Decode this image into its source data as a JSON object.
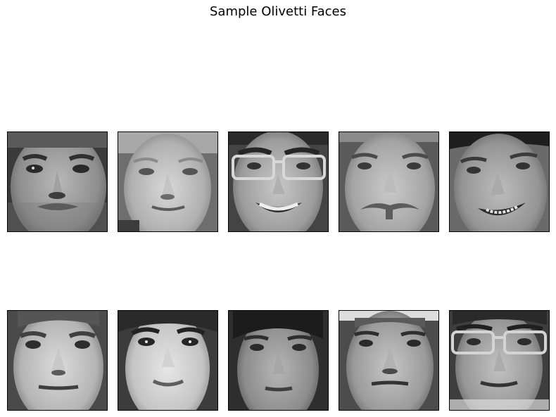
{
  "figure": {
    "title": "Sample Olivetti Faces"
  },
  "grid": {
    "rows": 2,
    "cols": 5
  },
  "faces": [
    {
      "index": 1,
      "description": "man, short dark hair, light stubble, neutral expression"
    },
    {
      "index": 2,
      "description": "man, short blond hair, slight smile"
    },
    {
      "index": 3,
      "description": "man wearing large glasses, broad smile showing teeth"
    },
    {
      "index": 4,
      "description": "man with moustache, neutral expression"
    },
    {
      "index": 5,
      "description": "man, tilted head, grinning with teeth showing"
    },
    {
      "index": 6,
      "description": "man, short hair, neutral expression"
    },
    {
      "index": 7,
      "description": "woman, dark hair, slight smile"
    },
    {
      "index": 8,
      "description": "young man, dark hair, neutral expression"
    },
    {
      "index": 9,
      "description": "man, short hair, neutral expression, frontal"
    },
    {
      "index": 10,
      "description": "man wearing large glasses, neutral expression"
    }
  ],
  "colors": {
    "background": "#ffffff",
    "border": "#000000",
    "image_palette": "grayscale"
  }
}
